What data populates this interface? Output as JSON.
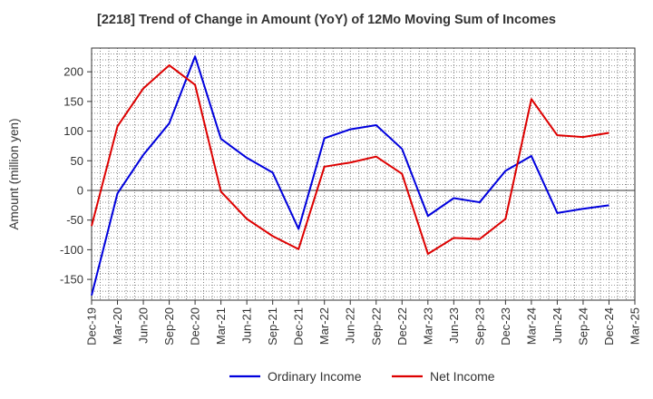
{
  "chart_data": {
    "type": "line",
    "title": "[2218]  Trend of Change in Amount (YoY) of 12Mo Moving Sum of Incomes",
    "ylabel": "Amount (million yen)",
    "xlabel": "",
    "ylim": [
      -185,
      240
    ],
    "yticks": [
      -150,
      -100,
      -50,
      0,
      50,
      100,
      150,
      200
    ],
    "x": [
      "Dec-19",
      "Mar-20",
      "Jun-20",
      "Sep-20",
      "Dec-20",
      "Mar-21",
      "Jun-21",
      "Sep-21",
      "Dec-21",
      "Mar-22",
      "Jun-22",
      "Sep-22",
      "Dec-22",
      "Mar-23",
      "Jun-23",
      "Sep-23",
      "Dec-23",
      "Mar-24",
      "Jun-24",
      "Sep-24",
      "Dec-24",
      "Mar-25"
    ],
    "series": [
      {
        "name": "Ordinary Income",
        "color": "#0000dd",
        "values": [
          -177,
          -5,
          60,
          113,
          226,
          87,
          55,
          30,
          -65,
          88,
          103,
          110,
          70,
          -43,
          -13,
          -20,
          33,
          58,
          -38,
          -31,
          -25,
          null
        ]
      },
      {
        "name": "Net Income",
        "color": "#dd0000",
        "values": [
          -60,
          108,
          172,
          211,
          178,
          -2,
          -48,
          -77,
          -99,
          40,
          47,
          57,
          28,
          -107,
          -80,
          -82,
          -48,
          154,
          93,
          90,
          97,
          null
        ]
      }
    ],
    "grid": true,
    "legend": "bottom"
  }
}
